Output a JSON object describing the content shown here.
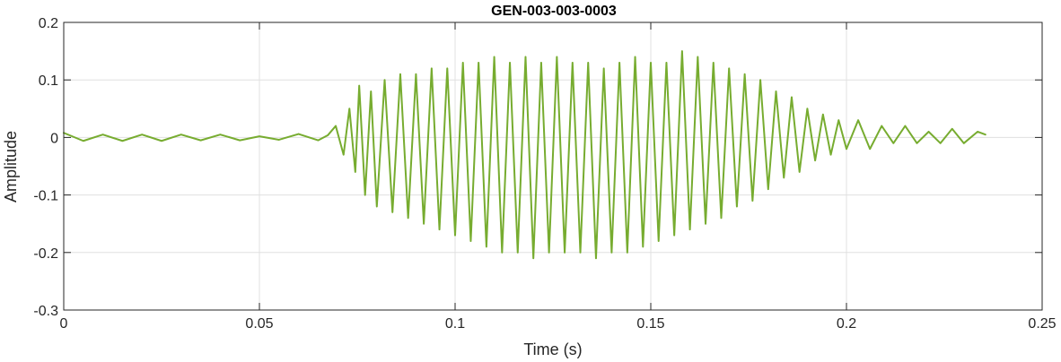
{
  "chart_data": {
    "type": "line",
    "title": "GEN-003-003-0003",
    "xlabel": "Time (s)",
    "ylabel": "Amplitude",
    "xlim": [
      0,
      0.25
    ],
    "ylim": [
      -0.3,
      0.2
    ],
    "x_ticks": [
      0,
      0.05,
      0.1,
      0.15,
      0.2,
      0.25
    ],
    "x_tick_labels": [
      "0",
      "0.05",
      "0.1",
      "0.15",
      "0.2",
      "0.25"
    ],
    "y_ticks": [
      -0.3,
      -0.2,
      -0.1,
      0,
      0.1,
      0.2
    ],
    "y_tick_labels": [
      "-0.3",
      "-0.2",
      "-0.1",
      "0",
      "0.1",
      "0.2"
    ],
    "grid": true,
    "colors": {
      "series": "#77AC30",
      "grid": "#E0E0E0",
      "axis": "#262626"
    },
    "series": [
      {
        "name": "",
        "color": "#77AC30",
        "x": [
          0,
          0.005,
          0.01,
          0.015,
          0.02,
          0.025,
          0.03,
          0.035,
          0.04,
          0.045,
          0.05,
          0.055,
          0.06,
          0.065,
          0.0675,
          0.0695,
          0.0715,
          0.073,
          0.0745,
          0.0755,
          0.077,
          0.0785,
          0.08,
          0.082,
          0.084,
          0.086,
          0.088,
          0.09,
          0.092,
          0.094,
          0.096,
          0.098,
          0.1,
          0.102,
          0.104,
          0.106,
          0.108,
          0.11,
          0.112,
          0.114,
          0.116,
          0.118,
          0.12,
          0.122,
          0.124,
          0.126,
          0.128,
          0.13,
          0.132,
          0.134,
          0.136,
          0.138,
          0.14,
          0.142,
          0.144,
          0.146,
          0.148,
          0.15,
          0.152,
          0.154,
          0.156,
          0.158,
          0.16,
          0.162,
          0.164,
          0.166,
          0.168,
          0.17,
          0.172,
          0.174,
          0.176,
          0.178,
          0.18,
          0.182,
          0.184,
          0.186,
          0.188,
          0.19,
          0.192,
          0.194,
          0.196,
          0.198,
          0.2,
          0.203,
          0.206,
          0.209,
          0.212,
          0.215,
          0.218,
          0.221,
          0.224,
          0.227,
          0.23,
          0.2335,
          0.2355
        ],
        "values": [
          0.008,
          -0.006,
          0.005,
          -0.006,
          0.005,
          -0.006,
          0.005,
          -0.005,
          0.005,
          -0.005,
          0.002,
          -0.004,
          0.006,
          -0.005,
          0.004,
          0.02,
          -0.03,
          0.05,
          -0.06,
          0.09,
          -0.1,
          0.08,
          -0.12,
          0.1,
          -0.13,
          0.11,
          -0.14,
          0.11,
          -0.15,
          0.12,
          -0.16,
          0.12,
          -0.17,
          0.13,
          -0.18,
          0.13,
          -0.19,
          0.14,
          -0.2,
          0.13,
          -0.2,
          0.14,
          -0.21,
          0.13,
          -0.2,
          0.14,
          -0.2,
          0.13,
          -0.2,
          0.13,
          -0.21,
          0.12,
          -0.2,
          0.13,
          -0.2,
          0.14,
          -0.19,
          0.13,
          -0.18,
          0.13,
          -0.17,
          0.15,
          -0.16,
          0.14,
          -0.15,
          0.13,
          -0.14,
          0.12,
          -0.12,
          0.11,
          -0.11,
          0.1,
          -0.09,
          0.08,
          -0.07,
          0.07,
          -0.06,
          0.05,
          -0.04,
          0.04,
          -0.03,
          0.03,
          -0.02,
          0.03,
          -0.02,
          0.02,
          -0.01,
          0.02,
          -0.01,
          0.01,
          -0.01,
          0.015,
          -0.01,
          0.01,
          0.005
        ]
      }
    ]
  }
}
